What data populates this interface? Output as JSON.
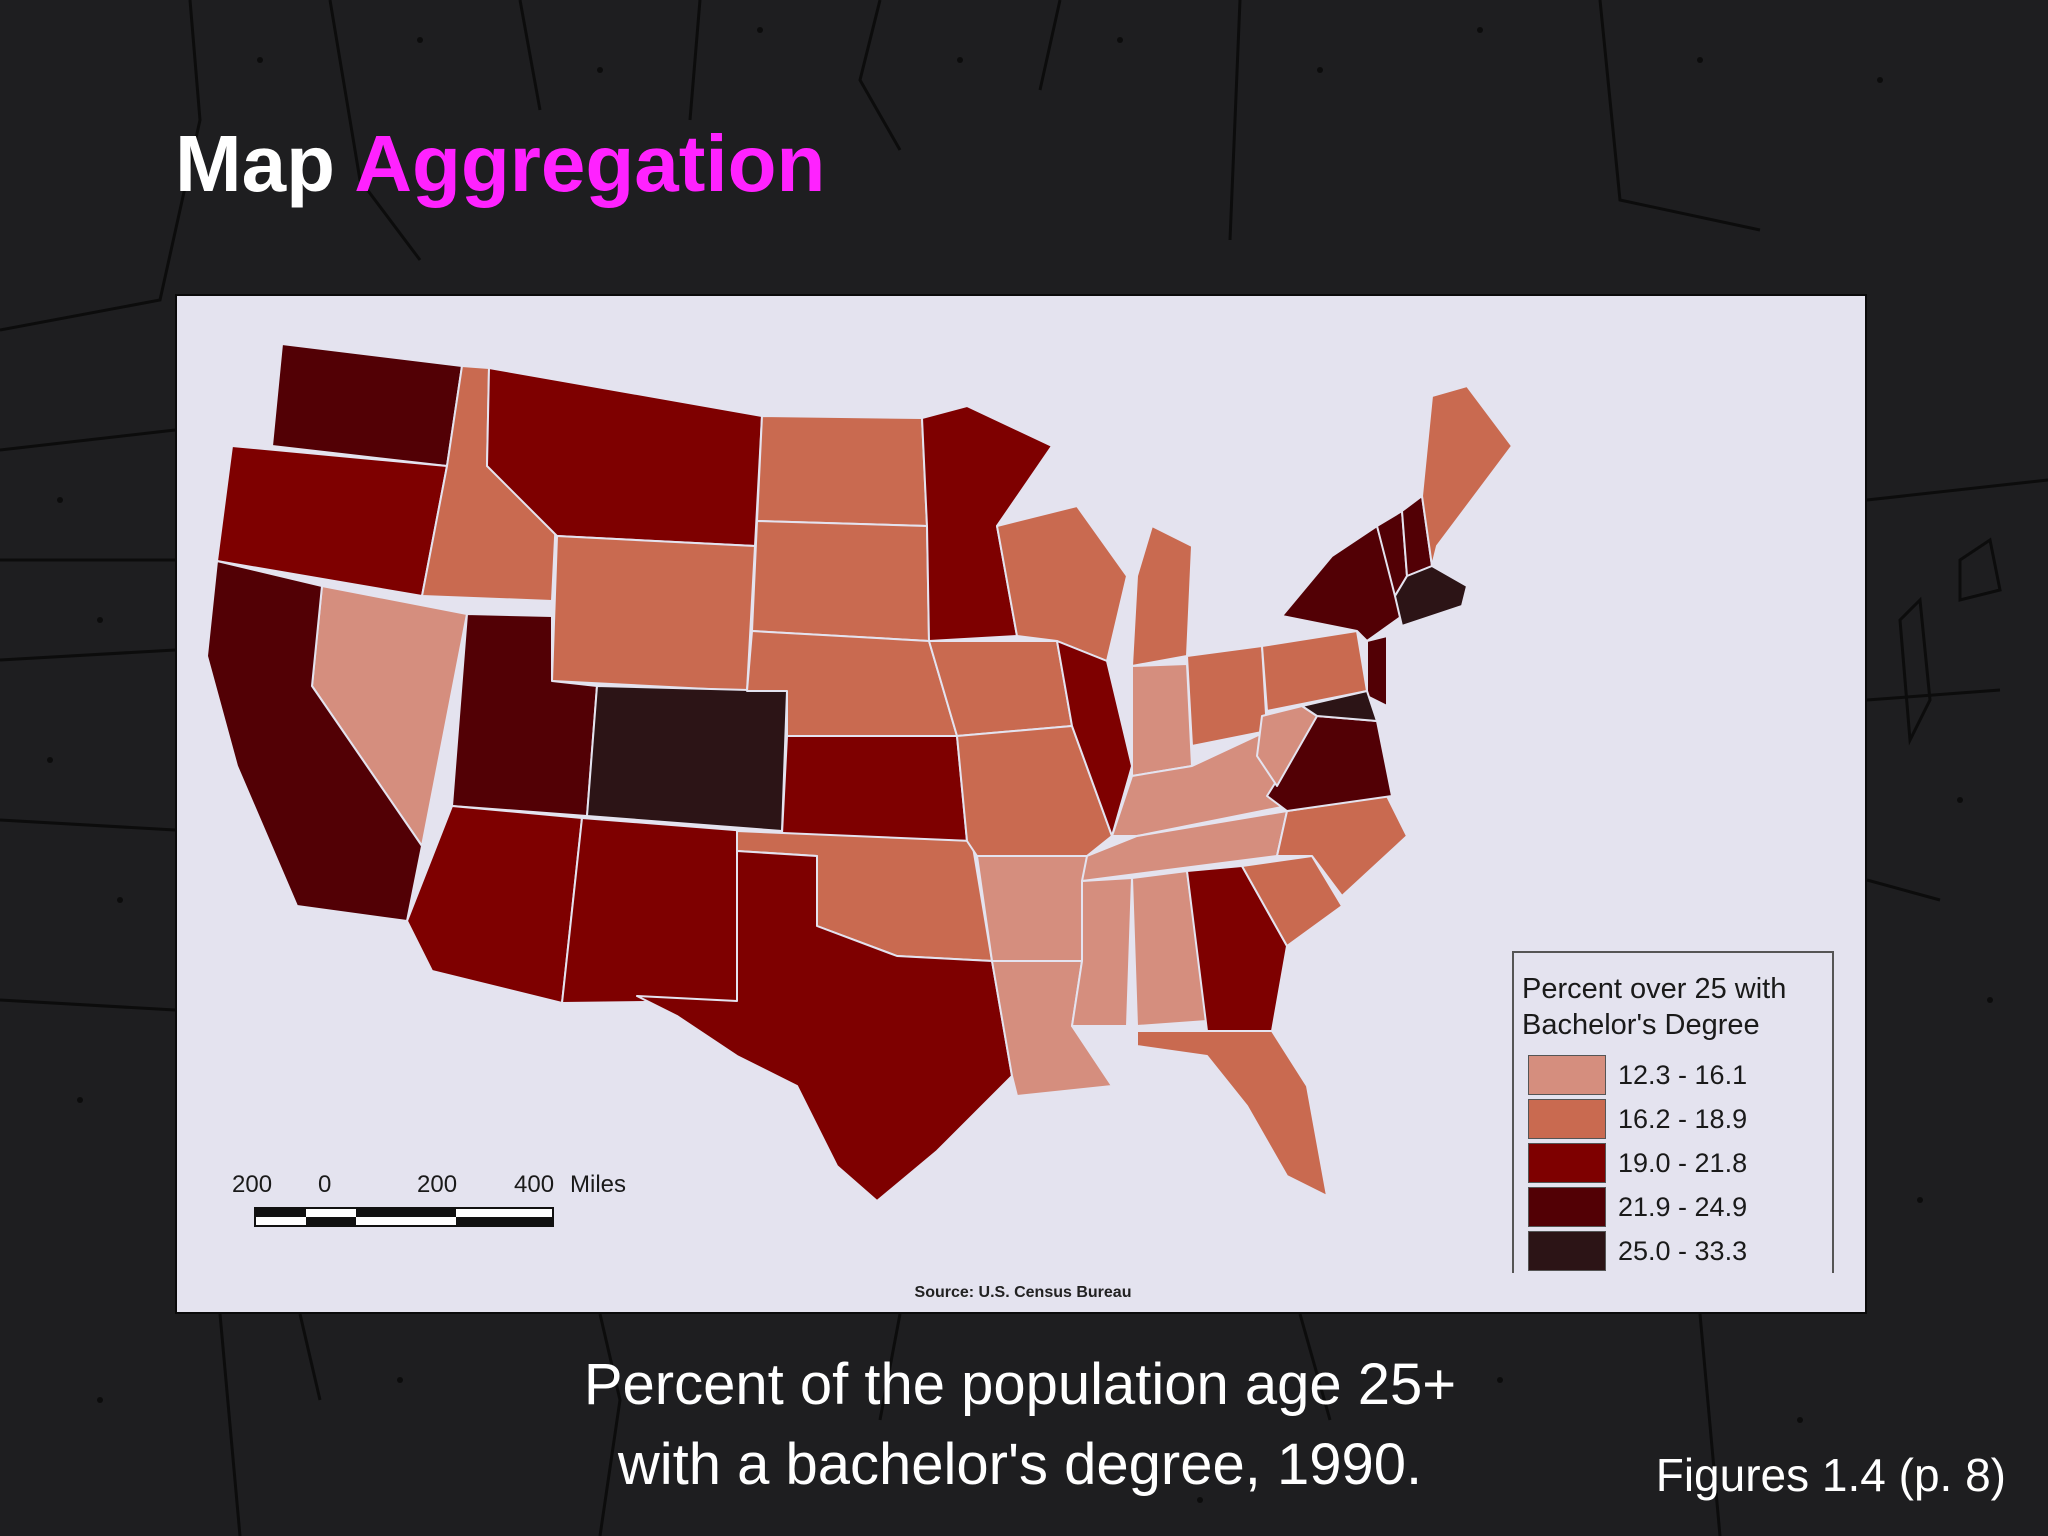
{
  "slide": {
    "title_main": "Map",
    "title_accent": "Aggregation",
    "caption_line1": "Percent of the population age 25+",
    "caption_line2": "with a bachelor's degree, 1990.",
    "figure_ref": "Figures 1.4 (p. 8)"
  },
  "map": {
    "source": "Source: U.S. Census Bureau",
    "legend": {
      "title_line1": "Percent over 25 with",
      "title_line2": "Bachelor's Degree",
      "classes": [
        {
          "label": "12.3 - 16.1",
          "color": "#d58e7e"
        },
        {
          "label": "16.2 - 18.9",
          "color": "#c96a50"
        },
        {
          "label": "19.0 - 21.8",
          "color": "#7e0000"
        },
        {
          "label": "21.9 - 24.9",
          "color": "#520005"
        },
        {
          "label": "25.0 - 33.3",
          "color": "#2c1416"
        }
      ]
    },
    "scale_bar": {
      "labels": [
        "200",
        "0",
        "200",
        "400"
      ],
      "unit": "Miles"
    },
    "colors": {
      "accent_title": "#ff22ff",
      "panel_bg": "#e4e3ef",
      "slide_bg": "#1e1e20"
    }
  }
}
